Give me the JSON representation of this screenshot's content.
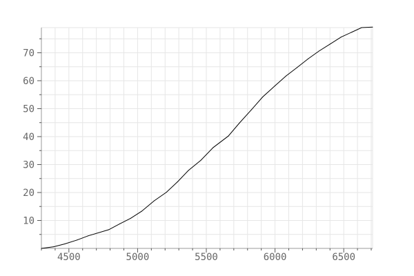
{
  "chart_data": {
    "type": "line",
    "title": "",
    "xlabel": "",
    "ylabel": "",
    "xlim": [
      4300,
      6710
    ],
    "ylim": [
      0,
      79
    ],
    "grid": true,
    "legend": "none",
    "x_ticks": [
      4500,
      5000,
      5500,
      6000,
      6500
    ],
    "y_ticks": [
      10,
      20,
      30,
      40,
      50,
      60,
      70
    ],
    "x_minor_step": 100,
    "y_minor_step": 5,
    "series": [
      {
        "color": "#000000",
        "points": [
          [
            4300,
            0
          ],
          [
            4390,
            0.6
          ],
          [
            4470,
            1.6
          ],
          [
            4560,
            3.0
          ],
          [
            4640,
            4.5
          ],
          [
            4790,
            6.7
          ],
          [
            4870,
            8.8
          ],
          [
            4950,
            10.8
          ],
          [
            5030,
            13.3
          ],
          [
            5120,
            17.0
          ],
          [
            5210,
            20.1
          ],
          [
            5290,
            23.8
          ],
          [
            5370,
            27.9
          ],
          [
            5460,
            31.5
          ],
          [
            5550,
            36.1
          ],
          [
            5660,
            40.2
          ],
          [
            5740,
            44.8
          ],
          [
            5830,
            49.7
          ],
          [
            5910,
            54.2
          ],
          [
            6000,
            58.2
          ],
          [
            6080,
            61.7
          ],
          [
            6160,
            64.7
          ],
          [
            6240,
            67.8
          ],
          [
            6320,
            70.6
          ],
          [
            6400,
            73.1
          ],
          [
            6480,
            75.6
          ],
          [
            6560,
            77.4
          ],
          [
            6630,
            79.0
          ],
          [
            6710,
            79.2
          ]
        ]
      }
    ]
  }
}
